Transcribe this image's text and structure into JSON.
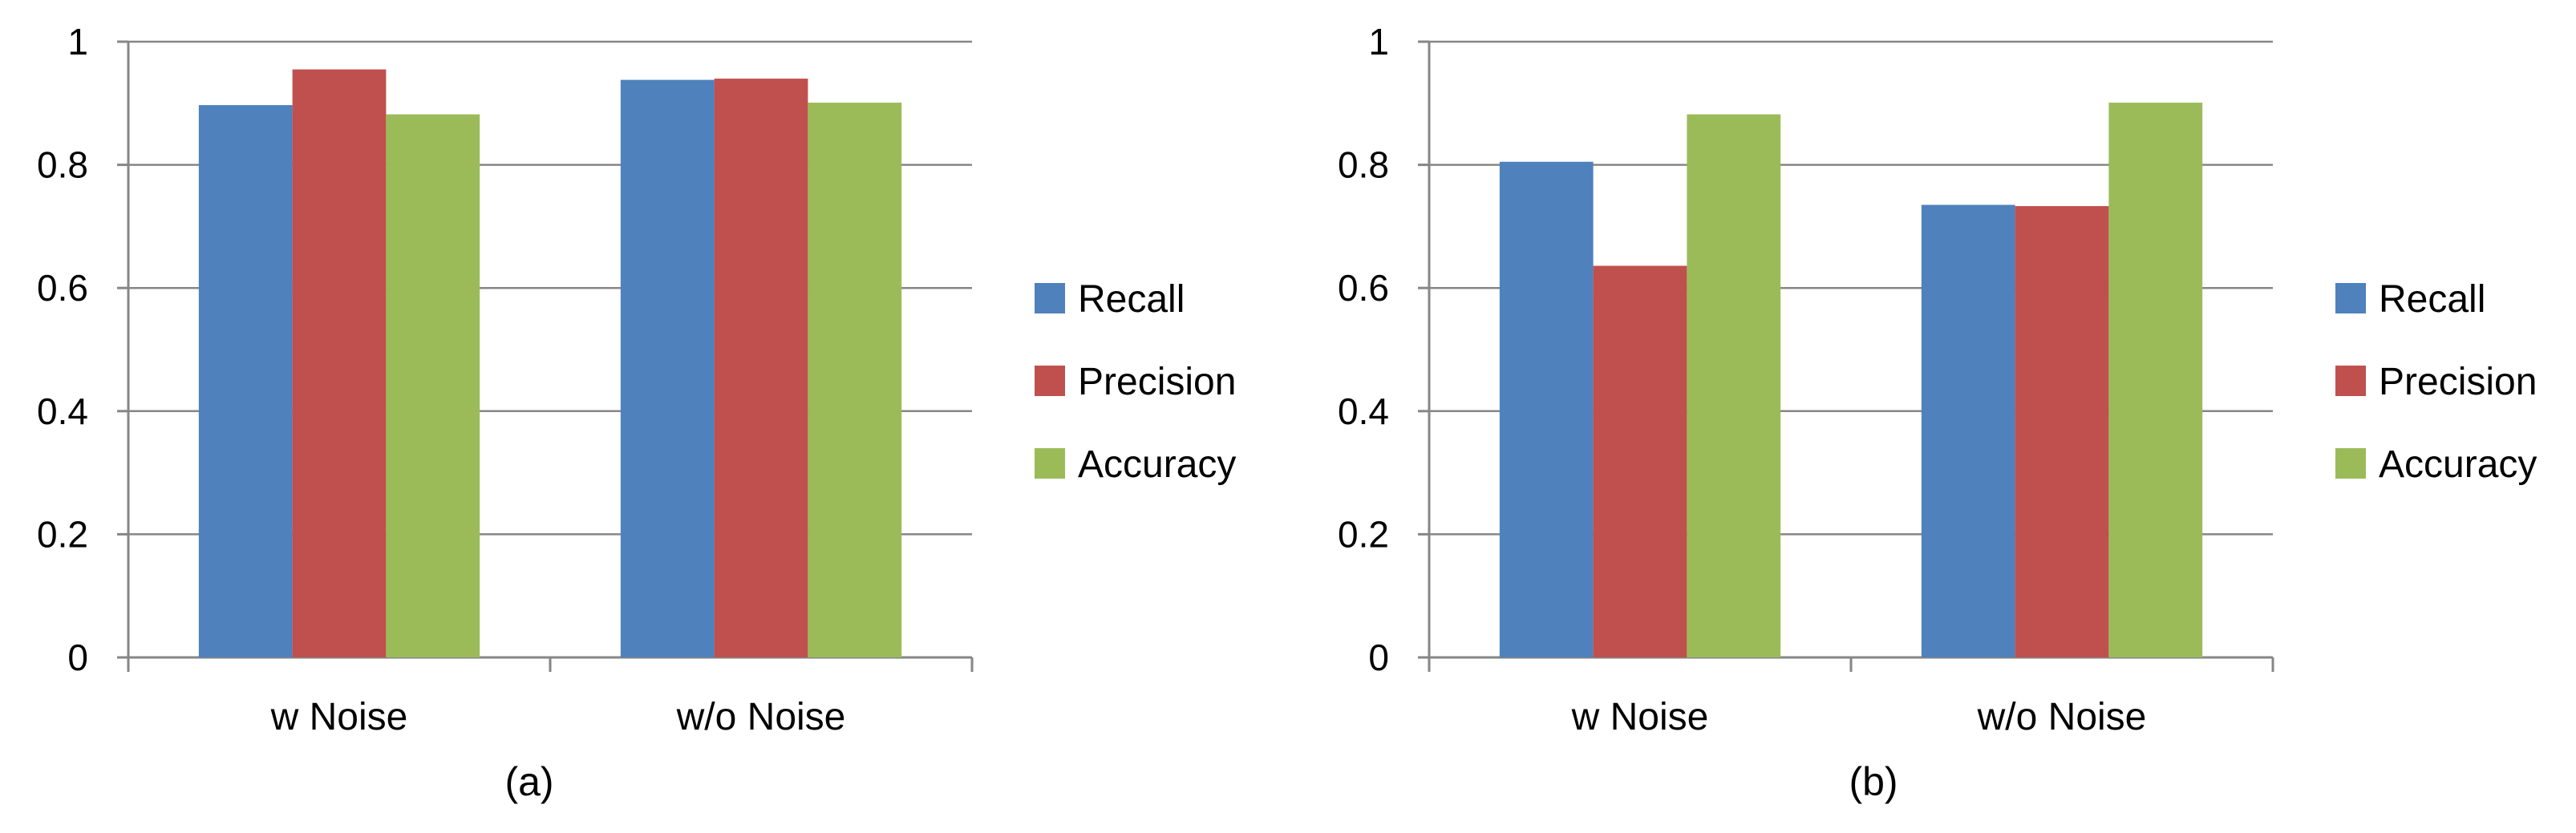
{
  "chart_data": [
    {
      "type": "bar",
      "caption": "(a)",
      "categories": [
        "w Noise",
        "w/o Noise"
      ],
      "series": [
        {
          "name": "Recall",
          "values": [
            0.897,
            0.938
          ]
        },
        {
          "name": "Precision",
          "values": [
            0.955,
            0.94
          ]
        },
        {
          "name": "Accuracy",
          "values": [
            0.882,
            0.901
          ]
        }
      ],
      "ylim": [
        0,
        1
      ],
      "yticks": [
        "0",
        "0.2",
        "0.4",
        "0.6",
        "0.8",
        "1"
      ],
      "ytick_values": [
        0,
        0.2,
        0.4,
        0.6,
        0.8,
        1
      ],
      "grid": true,
      "legend_position": "right",
      "title": "",
      "xlabel": "",
      "ylabel": ""
    },
    {
      "type": "bar",
      "caption": "(b)",
      "categories": [
        "w Noise",
        "w/o Noise"
      ],
      "series": [
        {
          "name": "Recall",
          "values": [
            0.805,
            0.735
          ]
        },
        {
          "name": "Precision",
          "values": [
            0.636,
            0.733
          ]
        },
        {
          "name": "Accuracy",
          "values": [
            0.882,
            0.901
          ]
        }
      ],
      "ylim": [
        0,
        1
      ],
      "yticks": [
        "0",
        "0.2",
        "0.4",
        "0.6",
        "0.8",
        "1"
      ],
      "ytick_values": [
        0,
        0.2,
        0.4,
        0.6,
        0.8,
        1
      ],
      "grid": true,
      "legend_position": "right",
      "title": "",
      "xlabel": "",
      "ylabel": ""
    }
  ],
  "colors": {
    "Recall": "#4F81BD",
    "Precision": "#C0504D",
    "Accuracy": "#9BBB59",
    "grid": "#868686"
  }
}
